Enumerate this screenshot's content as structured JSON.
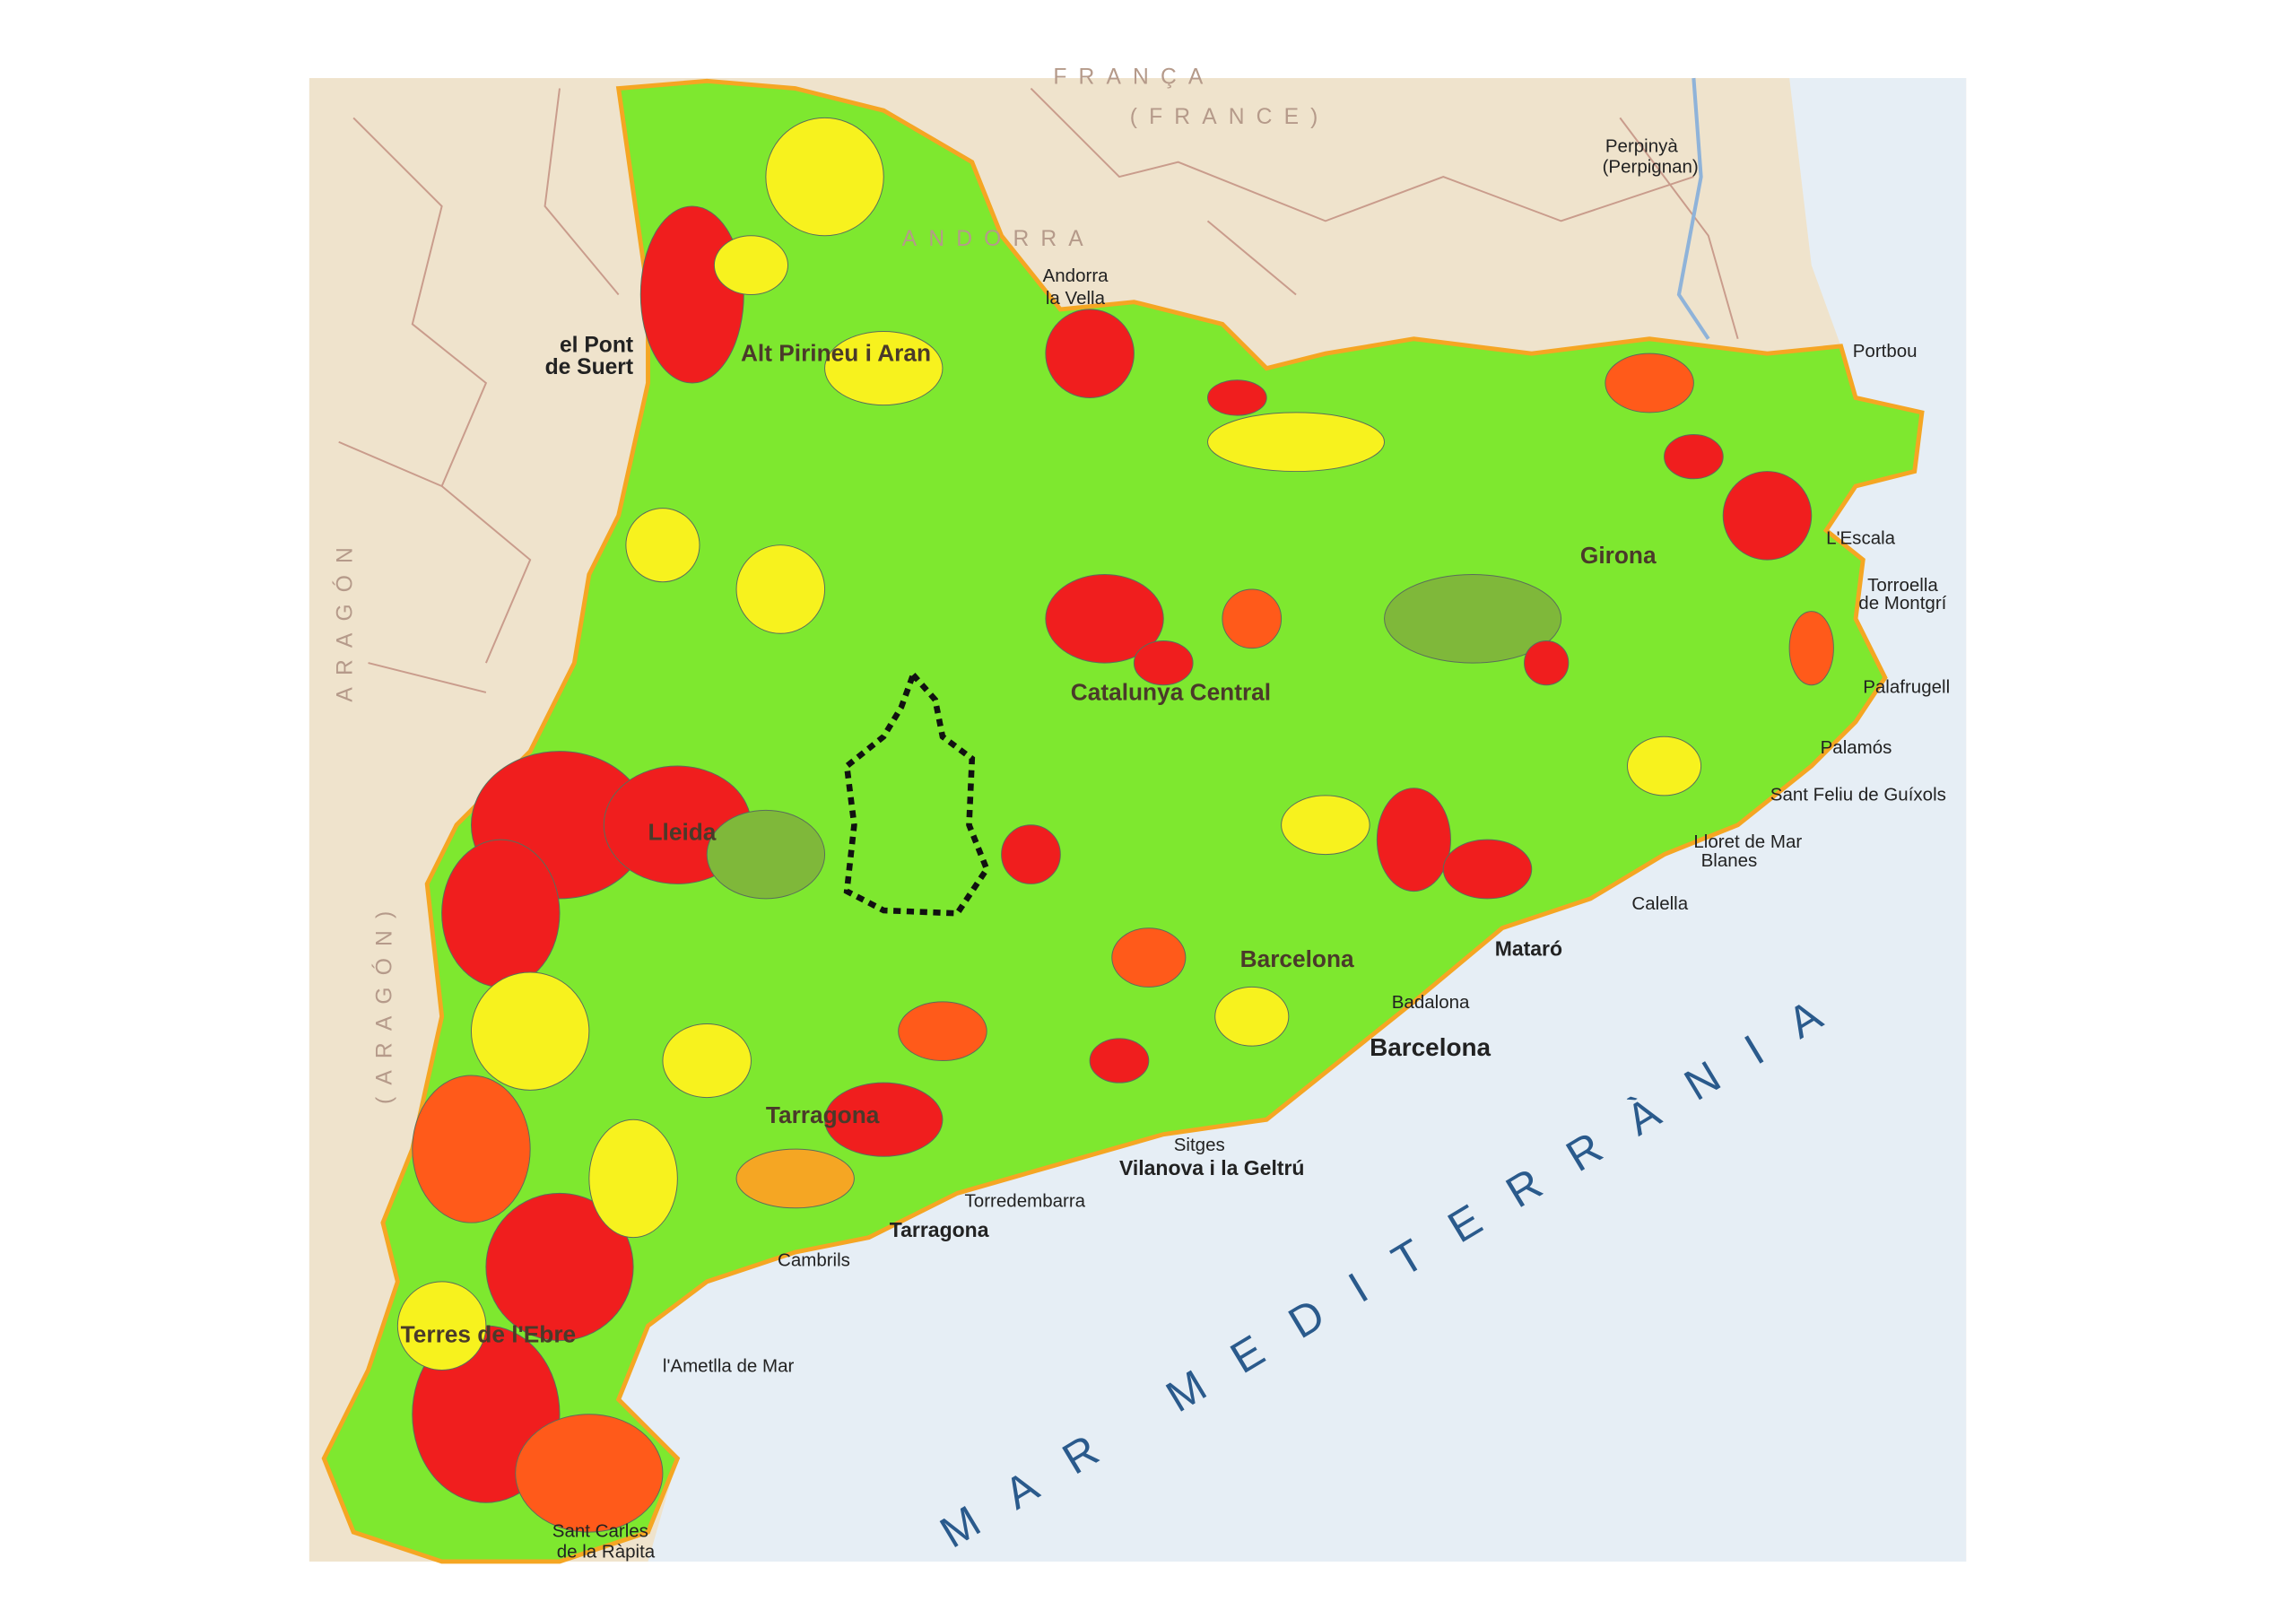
{
  "map": {
    "regions": [
      "Alt Pirineu i Aran",
      "Catalunya Central",
      "Girona",
      "Lleida",
      "Barcelona",
      "Tarragona",
      "Terres de l'Ebre"
    ],
    "places": [
      "Perpinyà",
      "(Perpignan)",
      "Andorra",
      "la Vella",
      "el Pont",
      "de Suert",
      "Portbou",
      "L'Escala",
      "Torroella",
      "de Montgrí",
      "Palafrugell",
      "Palamós",
      "Sant Feliu de Guíxols",
      "Lloret de Mar",
      "Blanes",
      "Calella",
      "Mataró",
      "Badalona",
      "Barcelona",
      "Sitges",
      "Vilanova i la Geltrú",
      "Torredembarra",
      "Tarragona",
      "Cambrils",
      "l'Ametlla de Mar",
      "Sant Carles",
      "de la Ràpita"
    ],
    "countries": [
      "FRANÇA",
      "(FRANCE)",
      "ANDORRA",
      "ARAGÓN",
      "(ARAGÓN)"
    ],
    "sea": "MAR MEDITERRÀNIA"
  }
}
